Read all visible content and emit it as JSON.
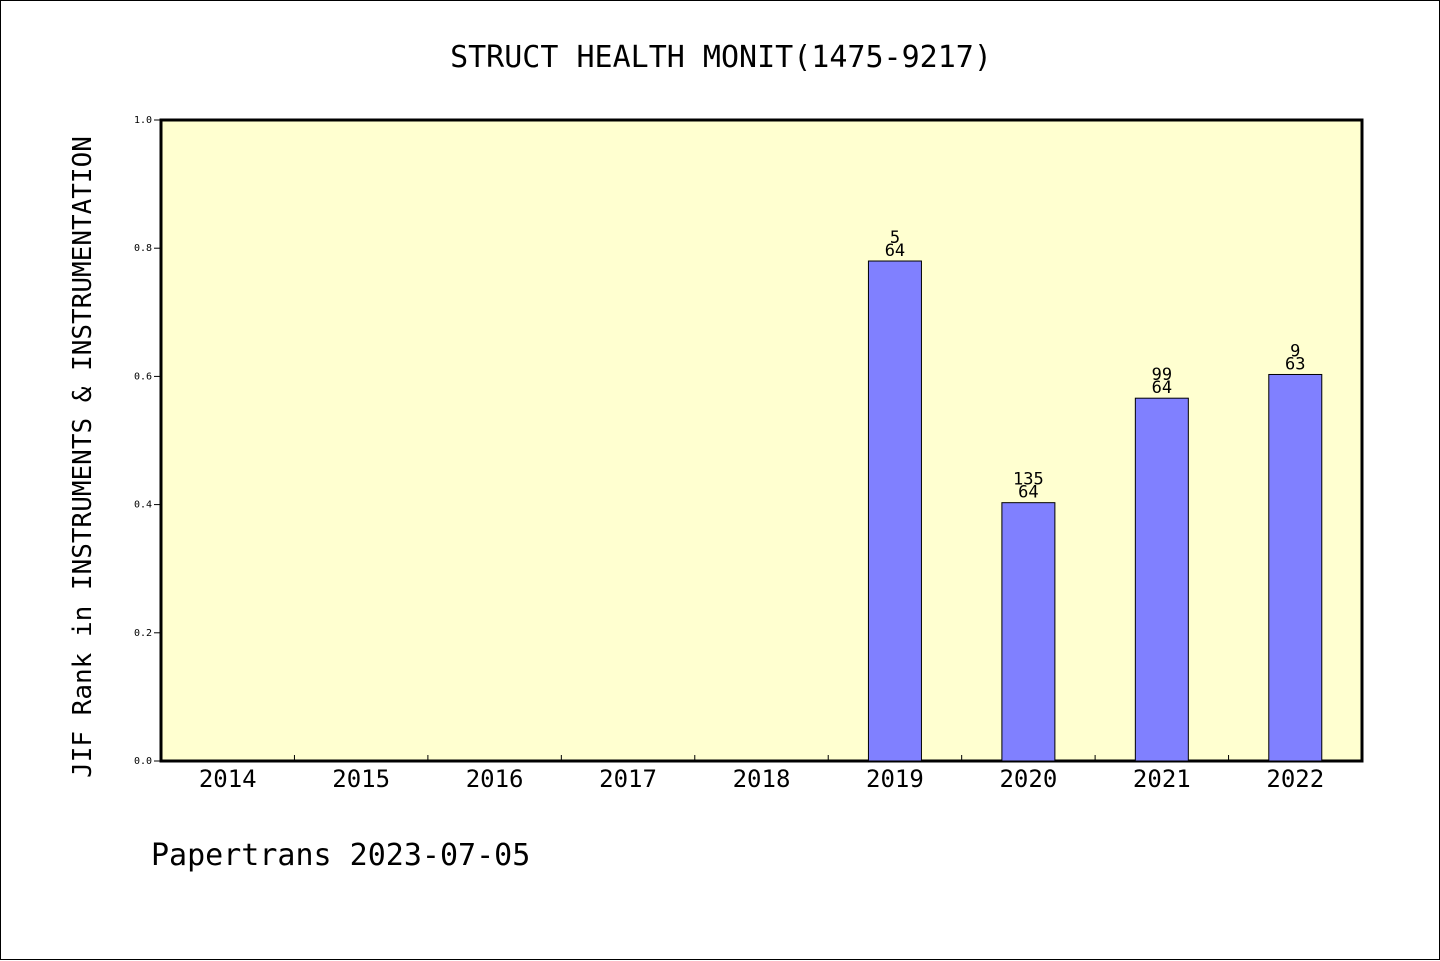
{
  "chart_data": {
    "type": "bar",
    "title": "STRUCT HEALTH MONIT(1475-9217)",
    "ylabel": "JIF Rank in INSTRUMENTS & INSTRUMENTATION",
    "xlabel": "",
    "categories": [
      "2014",
      "2015",
      "2016",
      "2017",
      "2018",
      "2019",
      "2020",
      "2021",
      "2022"
    ],
    "values": [
      null,
      null,
      null,
      null,
      null,
      0.78,
      0.403,
      0.566,
      0.603
    ],
    "bar_labels": [
      null,
      null,
      null,
      null,
      null,
      {
        "rank": "5",
        "total": "64"
      },
      {
        "rank": "135",
        "total": "64"
      },
      {
        "rank": "99",
        "total": "64"
      },
      {
        "rank": "9",
        "total": "63"
      }
    ],
    "ylim": [
      0,
      1.0
    ],
    "yticks": [
      "0.0",
      "0.2",
      "0.4",
      "0.6",
      "0.8",
      "1.0"
    ],
    "footer": "Papertrans 2023-07-05",
    "colors": {
      "plot_background": "#ffffd0",
      "bar_fill": "#8080ff",
      "bar_stroke": "#000000",
      "axis": "#000000"
    },
    "grid": false
  }
}
